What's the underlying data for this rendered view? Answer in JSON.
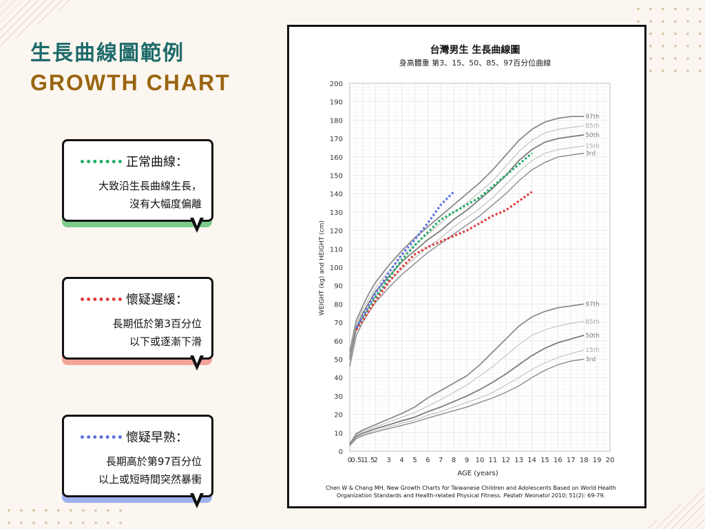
{
  "page": {
    "title_zh": "生長曲線圖範例",
    "title_en": "GROWTH CHART"
  },
  "cards": [
    {
      "key": "normal",
      "color": "#1fae64",
      "shadow": "#7ccc8c",
      "label": "正常曲線：",
      "text": "大致沿生長曲線生長，\n沒有大幅度偏離"
    },
    {
      "key": "delay",
      "color": "#e03a3a",
      "shadow": "#f2a49a",
      "label": "懷疑遲緩：",
      "text": "長期低於第3百分位\n以下或逐漸下滑"
    },
    {
      "key": "early",
      "color": "#5a6fe0",
      "shadow": "#9fb0ef",
      "label": "懷疑早熟：",
      "text": "長期高於第97百分位\n以上或短時間突然暴衝"
    }
  ],
  "chart_data": {
    "type": "line",
    "title": "台灣男生 生長曲線圖",
    "subtitle": "身高體重 第3、15、50、85、97百分位曲線",
    "xlabel": "AGE (years)",
    "ylabel": "WEIGHT (kg) and HEIGHT (cm)",
    "xlim": [
      0,
      20
    ],
    "ylim": [
      0,
      200
    ],
    "x_ticks": [
      "0",
      "0.5",
      "1",
      "1.5",
      "2",
      "3",
      "4",
      "5",
      "6",
      "7",
      "8",
      "9",
      "10",
      "11",
      "12",
      "13",
      "14",
      "15",
      "16",
      "17",
      "18",
      "19",
      "20"
    ],
    "y_ticks": [
      0,
      10,
      20,
      30,
      40,
      50,
      60,
      70,
      80,
      90,
      100,
      110,
      120,
      130,
      140,
      150,
      160,
      170,
      180,
      190,
      200
    ],
    "grid": true,
    "citation_plain": "Chen W & Chang MH. New Growth Charts for Taiwanese Children and Adolescents Based on World Health",
    "citation_line2_plain": "Organization Standards and Health-related Physical Fitness. ",
    "citation_journal": "Pediatr Neonatol",
    "citation_tail": " 2010; 51(2): 69-79.",
    "height_curves": [
      {
        "label": "97th",
        "points": [
          [
            0,
            54
          ],
          [
            0.5,
            71
          ],
          [
            1,
            79
          ],
          [
            1.5,
            86
          ],
          [
            2,
            92
          ],
          [
            3,
            101
          ],
          [
            4,
            109
          ],
          [
            5,
            116
          ],
          [
            6,
            122
          ],
          [
            7,
            128
          ],
          [
            8,
            134
          ],
          [
            9,
            140
          ],
          [
            10,
            146
          ],
          [
            11,
            153
          ],
          [
            12,
            161
          ],
          [
            13,
            169
          ],
          [
            14,
            175
          ],
          [
            15,
            179
          ],
          [
            16,
            181
          ],
          [
            17,
            182
          ],
          [
            18,
            182
          ]
        ]
      },
      {
        "label": "85th",
        "points": [
          [
            0,
            52
          ],
          [
            0.5,
            69
          ],
          [
            1,
            77
          ],
          [
            1.5,
            83
          ],
          [
            2,
            89
          ],
          [
            3,
            98
          ],
          [
            4,
            106
          ],
          [
            5,
            112
          ],
          [
            6,
            118
          ],
          [
            7,
            124
          ],
          [
            8,
            130
          ],
          [
            9,
            135
          ],
          [
            10,
            141
          ],
          [
            11,
            147
          ],
          [
            12,
            155
          ],
          [
            13,
            163
          ],
          [
            14,
            169
          ],
          [
            15,
            173
          ],
          [
            16,
            175
          ],
          [
            17,
            176
          ],
          [
            18,
            177
          ]
        ]
      },
      {
        "label": "50th",
        "points": [
          [
            0,
            50
          ],
          [
            0.5,
            67
          ],
          [
            1,
            75
          ],
          [
            1.5,
            81
          ],
          [
            2,
            87
          ],
          [
            3,
            95
          ],
          [
            4,
            103
          ],
          [
            5,
            109
          ],
          [
            6,
            115
          ],
          [
            7,
            120
          ],
          [
            8,
            126
          ],
          [
            9,
            131
          ],
          [
            10,
            137
          ],
          [
            11,
            143
          ],
          [
            12,
            150
          ],
          [
            13,
            158
          ],
          [
            14,
            164
          ],
          [
            15,
            168
          ],
          [
            16,
            170
          ],
          [
            17,
            171
          ],
          [
            18,
            172
          ]
        ]
      },
      {
        "label": "15th",
        "points": [
          [
            0,
            48
          ],
          [
            0.5,
            65
          ],
          [
            1,
            73
          ],
          [
            1.5,
            79
          ],
          [
            2,
            84
          ],
          [
            3,
            92
          ],
          [
            4,
            99
          ],
          [
            5,
            105
          ],
          [
            6,
            111
          ],
          [
            7,
            116
          ],
          [
            8,
            122
          ],
          [
            9,
            127
          ],
          [
            10,
            132
          ],
          [
            11,
            138
          ],
          [
            12,
            145
          ],
          [
            13,
            152
          ],
          [
            14,
            158
          ],
          [
            15,
            162
          ],
          [
            16,
            164
          ],
          [
            17,
            165
          ],
          [
            18,
            166
          ]
        ]
      },
      {
        "label": "3rd",
        "points": [
          [
            0,
            46
          ],
          [
            0.5,
            63
          ],
          [
            1,
            70
          ],
          [
            1.5,
            76
          ],
          [
            2,
            81
          ],
          [
            3,
            89
          ],
          [
            4,
            96
          ],
          [
            5,
            102
          ],
          [
            6,
            108
          ],
          [
            7,
            113
          ],
          [
            8,
            118
          ],
          [
            9,
            123
          ],
          [
            10,
            128
          ],
          [
            11,
            134
          ],
          [
            12,
            140
          ],
          [
            13,
            147
          ],
          [
            14,
            153
          ],
          [
            15,
            157
          ],
          [
            16,
            160
          ],
          [
            17,
            161
          ],
          [
            18,
            162
          ]
        ]
      }
    ],
    "weight_curves": [
      {
        "label": "97th",
        "points": [
          [
            0,
            4
          ],
          [
            0.5,
            9.5
          ],
          [
            1,
            11.5
          ],
          [
            1.5,
            13
          ],
          [
            2,
            14.5
          ],
          [
            3,
            17.5
          ],
          [
            4,
            20.5
          ],
          [
            5,
            24
          ],
          [
            6,
            29
          ],
          [
            7,
            33
          ],
          [
            8,
            37
          ],
          [
            9,
            41
          ],
          [
            10,
            47
          ],
          [
            11,
            54
          ],
          [
            12,
            61
          ],
          [
            13,
            68
          ],
          [
            14,
            73
          ],
          [
            15,
            76
          ],
          [
            16,
            78
          ],
          [
            17,
            79
          ],
          [
            18,
            80
          ]
        ]
      },
      {
        "label": "85th",
        "points": [
          [
            0,
            3.8
          ],
          [
            0.5,
            8.8
          ],
          [
            1,
            10.7
          ],
          [
            1.5,
            12
          ],
          [
            2,
            13.3
          ],
          [
            3,
            15.8
          ],
          [
            4,
            18.5
          ],
          [
            5,
            21
          ],
          [
            6,
            24.5
          ],
          [
            7,
            28
          ],
          [
            8,
            32
          ],
          [
            9,
            36
          ],
          [
            10,
            41
          ],
          [
            11,
            46
          ],
          [
            12,
            52
          ],
          [
            13,
            58
          ],
          [
            14,
            63
          ],
          [
            15,
            66
          ],
          [
            16,
            68
          ],
          [
            17,
            69.5
          ],
          [
            18,
            70.5
          ]
        ]
      },
      {
        "label": "50th",
        "points": [
          [
            0,
            3.5
          ],
          [
            0.5,
            8
          ],
          [
            1,
            9.8
          ],
          [
            1.5,
            11
          ],
          [
            2,
            12.3
          ],
          [
            3,
            14.3
          ],
          [
            4,
            16.5
          ],
          [
            5,
            18.5
          ],
          [
            6,
            21.5
          ],
          [
            7,
            24
          ],
          [
            8,
            27
          ],
          [
            9,
            30
          ],
          [
            10,
            33.5
          ],
          [
            11,
            37.5
          ],
          [
            12,
            42
          ],
          [
            13,
            47
          ],
          [
            14,
            52
          ],
          [
            15,
            56
          ],
          [
            16,
            59
          ],
          [
            17,
            61
          ],
          [
            18,
            63
          ]
        ]
      },
      {
        "label": "15th",
        "points": [
          [
            0,
            3.2
          ],
          [
            0.5,
            7.4
          ],
          [
            1,
            9
          ],
          [
            1.5,
            10.2
          ],
          [
            2,
            11.3
          ],
          [
            3,
            13.2
          ],
          [
            4,
            15.2
          ],
          [
            5,
            17
          ],
          [
            6,
            19.5
          ],
          [
            7,
            21.5
          ],
          [
            8,
            24
          ],
          [
            9,
            26.5
          ],
          [
            10,
            29
          ],
          [
            11,
            32
          ],
          [
            12,
            36
          ],
          [
            13,
            40
          ],
          [
            14,
            44.5
          ],
          [
            15,
            48
          ],
          [
            16,
            51
          ],
          [
            17,
            53
          ],
          [
            18,
            55
          ]
        ]
      },
      {
        "label": "3rd",
        "points": [
          [
            0,
            3
          ],
          [
            0.5,
            6.8
          ],
          [
            1,
            8.4
          ],
          [
            1.5,
            9.5
          ],
          [
            2,
            10.5
          ],
          [
            3,
            12.3
          ],
          [
            4,
            14
          ],
          [
            5,
            15.8
          ],
          [
            6,
            18
          ],
          [
            7,
            20
          ],
          [
            8,
            22
          ],
          [
            9,
            24
          ],
          [
            10,
            26.5
          ],
          [
            11,
            29
          ],
          [
            12,
            32
          ],
          [
            13,
            35.5
          ],
          [
            14,
            40
          ],
          [
            15,
            44
          ],
          [
            16,
            47
          ],
          [
            17,
            49
          ],
          [
            18,
            50
          ]
        ]
      }
    ],
    "example_series": [
      {
        "key": "normal",
        "color": "#1fae64",
        "points": [
          [
            0.5,
            66
          ],
          [
            1,
            72
          ],
          [
            2,
            84
          ],
          [
            3,
            94
          ],
          [
            4,
            104
          ],
          [
            5,
            112
          ],
          [
            6,
            119
          ],
          [
            7,
            126
          ],
          [
            8,
            130
          ],
          [
            9,
            134
          ],
          [
            10,
            138
          ],
          [
            11,
            144
          ],
          [
            12,
            150
          ],
          [
            13,
            156
          ],
          [
            14,
            162
          ]
        ]
      },
      {
        "key": "delay",
        "color": "#e03a3a",
        "points": [
          [
            0.5,
            66
          ],
          [
            1,
            71
          ],
          [
            2,
            82
          ],
          [
            3,
            92
          ],
          [
            4,
            100
          ],
          [
            5,
            107
          ],
          [
            6,
            111
          ],
          [
            7,
            114
          ],
          [
            8,
            117
          ],
          [
            9,
            120
          ],
          [
            10,
            124
          ],
          [
            11,
            128
          ],
          [
            12,
            131
          ],
          [
            13,
            136
          ],
          [
            14,
            141
          ]
        ]
      },
      {
        "key": "early",
        "color": "#5a6fe0",
        "points": [
          [
            0.5,
            67
          ],
          [
            1,
            73
          ],
          [
            2,
            86
          ],
          [
            3,
            97
          ],
          [
            4,
            107
          ],
          [
            5,
            115
          ],
          [
            6,
            124
          ],
          [
            7,
            134
          ],
          [
            8,
            141
          ]
        ]
      }
    ]
  }
}
